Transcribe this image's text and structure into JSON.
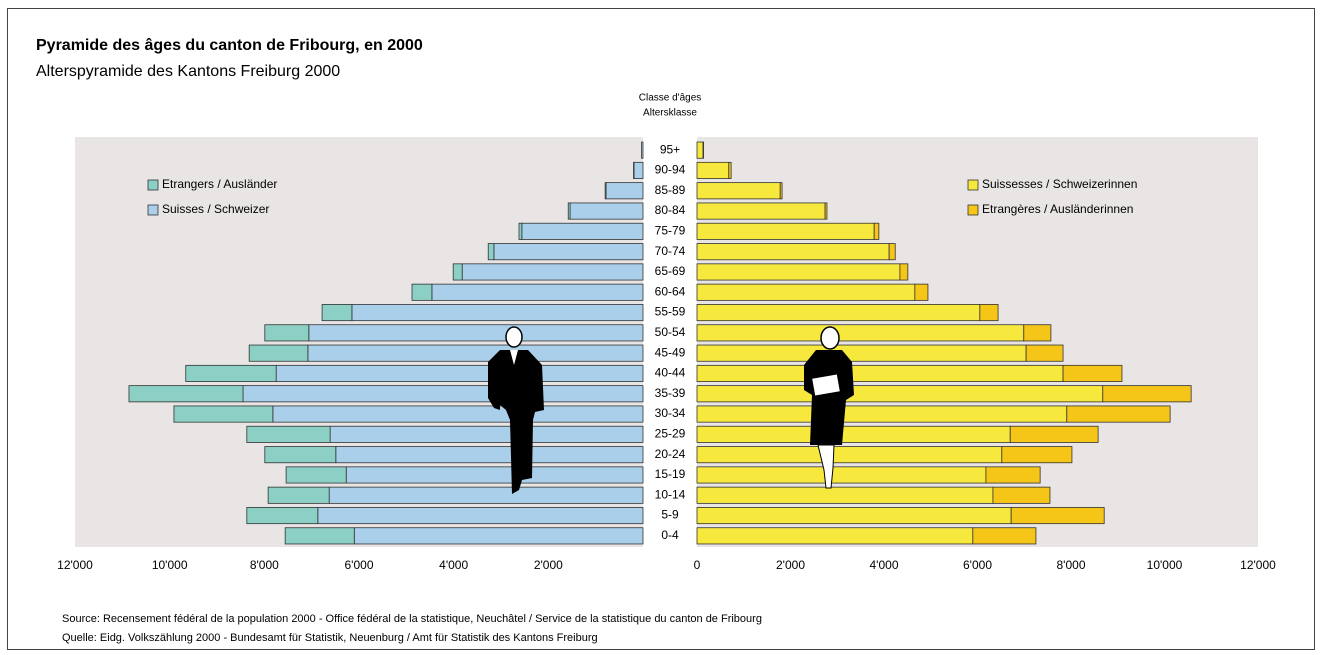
{
  "title": "Pyramide des âges du canton de Fribourg, en 2000",
  "subtitle": "Alterspyramide des Kantons Freiburg 2000",
  "axis_title": [
    "Classe d'âges",
    "Altersklasse"
  ],
  "source": [
    "Source: Recensement fédéral de la population 2000 - Office fédéral de la statistique, Neuchâtel  / Service de la statistique du canton de Fribourg",
    "Quelle: Eidg. Volkszählung 2000 - Bundesamt für Statistik, Neuenburg / Amt für Statistik des Kantons Freiburg"
  ],
  "chart_data": [
    {
      "type": "bar",
      "orientation": "horizontal",
      "stacked": true,
      "legend": "upper left",
      "legend_reversed": true,
      "categories": [
        "0-4",
        "5-9",
        "10-14",
        "15-19",
        "20-24",
        "25-29",
        "30-34",
        "35-39",
        "40-44",
        "45-49",
        "50-54",
        "55-59",
        "60-64",
        "65-69",
        "70-74",
        "75-79",
        "80-84",
        "85-89",
        "90-94",
        "95+"
      ],
      "xlim": [
        12000,
        0
      ],
      "xticks": [
        {
          "value": 12000,
          "label": "12'000"
        },
        {
          "value": 10000,
          "label": "10'000"
        },
        {
          "value": 8000,
          "label": "8'000"
        },
        {
          "value": 6000,
          "label": "6'000"
        },
        {
          "value": 4000,
          "label": "4'000"
        },
        {
          "value": 2000,
          "label": "2'000"
        }
      ],
      "series": [
        {
          "name": "Suisses / Schweizer",
          "color": "#a9cfea",
          "values": [
            6100,
            6870,
            6630,
            6270,
            6490,
            6610,
            7820,
            8450,
            7750,
            7080,
            7060,
            6150,
            4460,
            3820,
            3150,
            2560,
            1540,
            780,
            190,
            30
          ]
        },
        {
          "name": "Etrangers / Ausländer",
          "color": "#8ccfc4",
          "values": [
            1460,
            1500,
            1290,
            1270,
            1500,
            1760,
            2090,
            2410,
            1910,
            1240,
            930,
            630,
            420,
            190,
            120,
            60,
            40,
            20,
            10,
            0
          ]
        }
      ]
    },
    {
      "type": "bar",
      "orientation": "horizontal",
      "stacked": true,
      "legend": "upper right",
      "legend_reversed": false,
      "xlim": [
        0,
        12000
      ],
      "xticks": [
        0,
        {
          "value": 2000,
          "label": "2'000"
        },
        {
          "value": 4000,
          "label": "4'000"
        },
        {
          "value": 6000,
          "label": "6'000"
        },
        {
          "value": 8000,
          "label": "8'000"
        },
        {
          "value": 10000,
          "label": "10'000"
        },
        {
          "value": 12000,
          "label": "12'000"
        }
      ],
      "series": [
        {
          "name": "Suissesses / Schweizerinnen",
          "color": "#f7e83e",
          "values": [
            5900,
            6720,
            6330,
            6180,
            6520,
            6700,
            7910,
            8680,
            7830,
            7040,
            6990,
            6050,
            4660,
            4340,
            4110,
            3790,
            2740,
            1780,
            680,
            130
          ]
        },
        {
          "name": "Etrangères / Ausländerinnen",
          "color": "#f5c518",
          "values": [
            1350,
            1990,
            1220,
            1160,
            1500,
            1880,
            2210,
            1890,
            1260,
            790,
            580,
            390,
            280,
            170,
            130,
            100,
            40,
            40,
            50,
            10
          ]
        }
      ]
    }
  ]
}
